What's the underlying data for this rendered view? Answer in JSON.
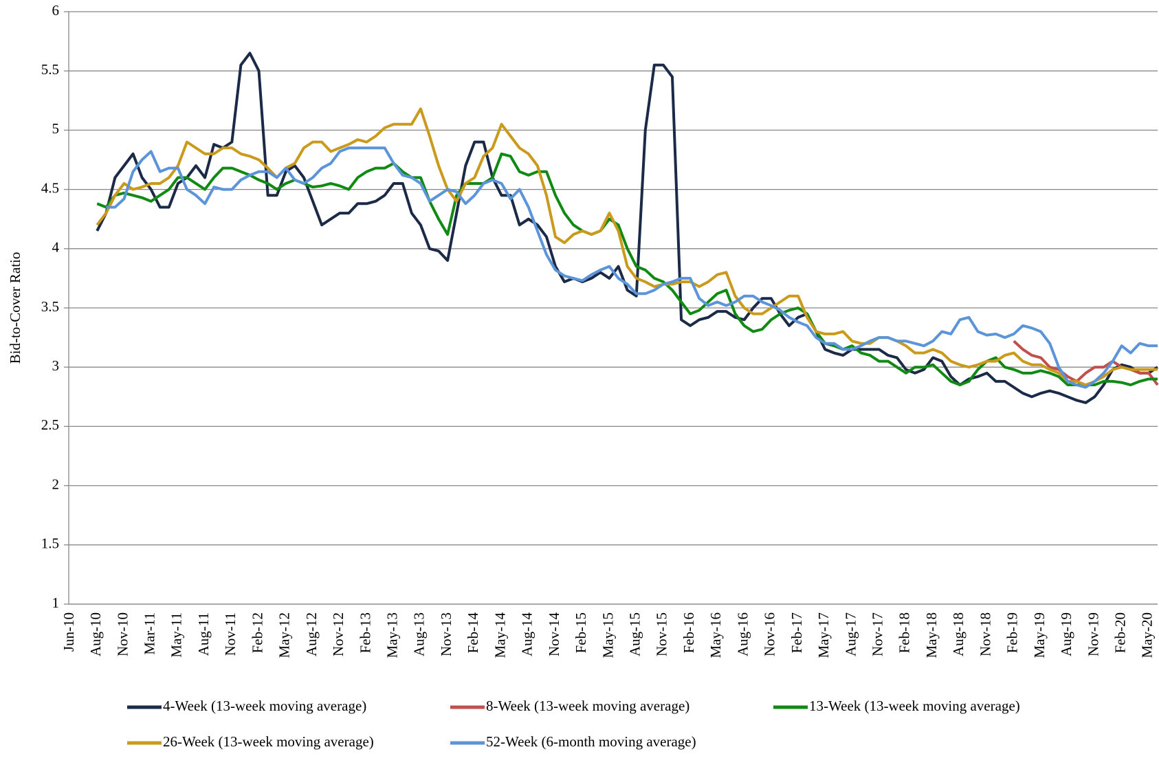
{
  "chart_data": {
    "type": "line",
    "y_label": "Bid-to-Cover Ratio",
    "categories": [
      "Jun-10",
      null,
      null,
      "Aug-10",
      null,
      null,
      "Nov-10",
      null,
      null,
      "Mar-11",
      null,
      null,
      "May-11",
      null,
      null,
      "Aug-11",
      null,
      null,
      "Nov-11",
      null,
      null,
      "Feb-12",
      null,
      null,
      "May-12",
      null,
      null,
      "Aug-12",
      null,
      null,
      "Nov-12",
      null,
      null,
      "Feb-13",
      null,
      null,
      "May-13",
      null,
      null,
      "Aug-13",
      null,
      null,
      "Nov-13",
      null,
      null,
      "Feb-14",
      null,
      null,
      "May-14",
      null,
      null,
      "Aug-14",
      null,
      null,
      "Nov-14",
      null,
      null,
      "Feb-15",
      null,
      null,
      "May-15",
      null,
      null,
      "Aug-15",
      null,
      null,
      "Nov-15",
      null,
      null,
      "Feb-16",
      null,
      null,
      "May-16",
      null,
      null,
      "Aug-16",
      null,
      null,
      "Nov-16",
      null,
      null,
      "Feb-17",
      null,
      null,
      "May-17",
      null,
      null,
      "Aug-17",
      null,
      null,
      "Nov-17",
      null,
      null,
      "Feb-18",
      null,
      null,
      "May-18",
      null,
      null,
      "Aug-18",
      null,
      null,
      "Nov-18",
      null,
      null,
      "Feb-19",
      null,
      null,
      "May-19",
      null,
      null,
      "Aug-19",
      null,
      null,
      "Nov-19",
      null,
      null,
      "Feb-20",
      null,
      null,
      "May-20",
      null
    ],
    "ylim": [
      1,
      6
    ],
    "yticks": [
      1,
      1.5,
      2,
      2.5,
      3,
      3.5,
      4,
      4.5,
      5,
      5.5,
      6
    ],
    "grid": true,
    "legend": "bottom",
    "series": [
      {
        "name": "4-Week (13-week moving average)",
        "color": "#1b2a47",
        "values": [
          null,
          null,
          null,
          4.15,
          4.3,
          4.6,
          4.7,
          4.8,
          4.6,
          4.5,
          4.35,
          4.35,
          4.55,
          4.6,
          4.7,
          4.6,
          4.88,
          4.85,
          4.9,
          5.55,
          5.65,
          5.5,
          4.45,
          4.45,
          4.65,
          4.7,
          4.6,
          4.4,
          4.2,
          4.25,
          4.3,
          4.3,
          4.38,
          4.38,
          4.4,
          4.45,
          4.55,
          4.55,
          4.3,
          4.2,
          4.0,
          3.98,
          3.9,
          4.3,
          4.7,
          4.9,
          4.9,
          4.6,
          4.45,
          4.45,
          4.2,
          4.25,
          4.2,
          4.1,
          3.85,
          3.72,
          3.75,
          3.72,
          3.75,
          3.8,
          3.75,
          3.85,
          3.65,
          3.6,
          5.0,
          5.55,
          5.55,
          5.45,
          3.4,
          3.35,
          3.4,
          3.42,
          3.47,
          3.47,
          3.42,
          3.4,
          3.5,
          3.58,
          3.58,
          3.45,
          3.35,
          3.42,
          3.45,
          3.3,
          3.15,
          3.12,
          3.1,
          3.15,
          3.15,
          3.15,
          3.15,
          3.1,
          3.08,
          2.98,
          2.95,
          2.98,
          3.08,
          3.05,
          2.92,
          2.85,
          2.9,
          2.92,
          2.95,
          2.88,
          2.88,
          2.83,
          2.78,
          2.75,
          2.78,
          2.8,
          2.78,
          2.75,
          2.72,
          2.7,
          2.75,
          2.85,
          2.98,
          3.02,
          3.0,
          2.95,
          2.95,
          3.0
        ]
      },
      {
        "name": "8-Week (13-week moving average)",
        "color": "#c0504d",
        "values": [
          null,
          null,
          null,
          null,
          null,
          null,
          null,
          null,
          null,
          null,
          null,
          null,
          null,
          null,
          null,
          null,
          null,
          null,
          null,
          null,
          null,
          null,
          null,
          null,
          null,
          null,
          null,
          null,
          null,
          null,
          null,
          null,
          null,
          null,
          null,
          null,
          null,
          null,
          null,
          null,
          null,
          null,
          null,
          null,
          null,
          null,
          null,
          null,
          null,
          null,
          null,
          null,
          null,
          null,
          null,
          null,
          null,
          null,
          null,
          null,
          null,
          null,
          null,
          null,
          null,
          null,
          null,
          null,
          null,
          null,
          null,
          null,
          null,
          null,
          null,
          null,
          null,
          null,
          null,
          null,
          null,
          null,
          null,
          null,
          null,
          null,
          null,
          null,
          null,
          null,
          null,
          null,
          null,
          null,
          null,
          null,
          null,
          null,
          null,
          null,
          null,
          null,
          null,
          null,
          null,
          3.22,
          3.15,
          3.1,
          3.08,
          3.0,
          2.98,
          2.92,
          2.88,
          2.95,
          3.0,
          3.0,
          3.05,
          3.0,
          2.98,
          2.95,
          2.95,
          2.85
        ]
      },
      {
        "name": "13-Week (13-week moving average)",
        "color": "#118a14",
        "values": [
          null,
          null,
          null,
          4.38,
          4.35,
          4.45,
          4.47,
          4.45,
          4.43,
          4.4,
          4.45,
          4.5,
          4.6,
          4.6,
          4.55,
          4.5,
          4.6,
          4.68,
          4.68,
          4.65,
          4.62,
          4.58,
          4.55,
          4.5,
          4.55,
          4.58,
          4.55,
          4.52,
          4.53,
          4.55,
          4.53,
          4.5,
          4.6,
          4.65,
          4.68,
          4.68,
          4.72,
          4.65,
          4.6,
          4.6,
          4.4,
          4.25,
          4.12,
          4.45,
          4.55,
          4.55,
          4.55,
          4.6,
          4.8,
          4.78,
          4.65,
          4.62,
          4.65,
          4.65,
          4.45,
          4.3,
          4.2,
          4.15,
          4.12,
          4.15,
          4.25,
          4.2,
          4.0,
          3.85,
          3.82,
          3.75,
          3.72,
          3.65,
          3.55,
          3.45,
          3.48,
          3.55,
          3.62,
          3.65,
          3.45,
          3.35,
          3.3,
          3.32,
          3.4,
          3.45,
          3.48,
          3.5,
          3.45,
          3.3,
          3.2,
          3.18,
          3.15,
          3.18,
          3.12,
          3.1,
          3.05,
          3.05,
          3.0,
          2.95,
          3.0,
          3.0,
          3.02,
          2.95,
          2.88,
          2.85,
          2.88,
          2.98,
          3.05,
          3.08,
          3.0,
          2.98,
          2.95,
          2.95,
          2.97,
          2.95,
          2.92,
          2.85,
          2.85,
          2.85,
          2.85,
          2.88,
          2.88,
          2.87,
          2.85,
          2.88,
          2.9,
          2.9
        ]
      },
      {
        "name": "26-Week (13-week moving average)",
        "color": "#c99a1c",
        "values": [
          null,
          null,
          null,
          4.2,
          4.3,
          4.45,
          4.55,
          4.5,
          4.52,
          4.55,
          4.55,
          4.6,
          4.7,
          4.9,
          4.85,
          4.8,
          4.8,
          4.85,
          4.85,
          4.8,
          4.78,
          4.75,
          4.68,
          4.6,
          4.68,
          4.72,
          4.85,
          4.9,
          4.9,
          4.82,
          4.85,
          4.88,
          4.92,
          4.9,
          4.95,
          5.02,
          5.05,
          5.05,
          5.05,
          5.18,
          4.95,
          4.7,
          4.5,
          4.4,
          4.55,
          4.6,
          4.78,
          4.85,
          5.05,
          4.95,
          4.85,
          4.8,
          4.7,
          4.45,
          4.1,
          4.05,
          4.12,
          4.15,
          4.12,
          4.15,
          4.3,
          4.15,
          3.85,
          3.75,
          3.72,
          3.68,
          3.7,
          3.7,
          3.72,
          3.72,
          3.68,
          3.72,
          3.78,
          3.8,
          3.6,
          3.5,
          3.45,
          3.45,
          3.5,
          3.55,
          3.6,
          3.6,
          3.42,
          3.3,
          3.28,
          3.28,
          3.3,
          3.22,
          3.2,
          3.2,
          3.25,
          3.25,
          3.22,
          3.18,
          3.12,
          3.12,
          3.15,
          3.12,
          3.05,
          3.02,
          3.0,
          3.02,
          3.05,
          3.05,
          3.1,
          3.12,
          3.05,
          3.02,
          3.02,
          2.98,
          2.95,
          2.88,
          2.88,
          2.85,
          2.88,
          2.92,
          2.98,
          3.0,
          2.98,
          2.98,
          2.98,
          2.98
        ]
      },
      {
        "name": "52-Week (6-month moving average)",
        "color": "#5b94d8",
        "values": [
          null,
          null,
          null,
          null,
          4.35,
          4.35,
          4.42,
          4.65,
          4.75,
          4.82,
          4.65,
          4.68,
          4.68,
          4.5,
          4.45,
          4.38,
          4.52,
          4.5,
          4.5,
          4.58,
          4.62,
          4.65,
          4.65,
          4.6,
          4.68,
          4.58,
          4.55,
          4.6,
          4.68,
          4.72,
          4.82,
          4.85,
          4.85,
          4.85,
          4.85,
          4.85,
          4.72,
          4.62,
          4.6,
          4.55,
          4.4,
          4.45,
          4.5,
          4.48,
          4.38,
          4.45,
          4.55,
          4.58,
          4.55,
          4.42,
          4.5,
          4.35,
          4.15,
          3.95,
          3.82,
          3.77,
          3.75,
          3.73,
          3.78,
          3.82,
          3.85,
          3.75,
          3.7,
          3.62,
          3.62,
          3.65,
          3.7,
          3.72,
          3.75,
          3.75,
          3.58,
          3.52,
          3.55,
          3.52,
          3.55,
          3.6,
          3.6,
          3.55,
          3.52,
          3.48,
          3.42,
          3.38,
          3.35,
          3.25,
          3.2,
          3.2,
          3.15,
          3.15,
          3.18,
          3.22,
          3.25,
          3.25,
          3.22,
          3.22,
          3.2,
          3.18,
          3.22,
          3.3,
          3.28,
          3.4,
          3.42,
          3.3,
          3.27,
          3.28,
          3.25,
          3.28,
          3.35,
          3.33,
          3.3,
          3.2,
          3.0,
          2.88,
          2.85,
          2.83,
          2.88,
          2.95,
          3.05,
          3.18,
          3.12,
          3.2,
          3.18,
          3.18
        ]
      }
    ]
  }
}
